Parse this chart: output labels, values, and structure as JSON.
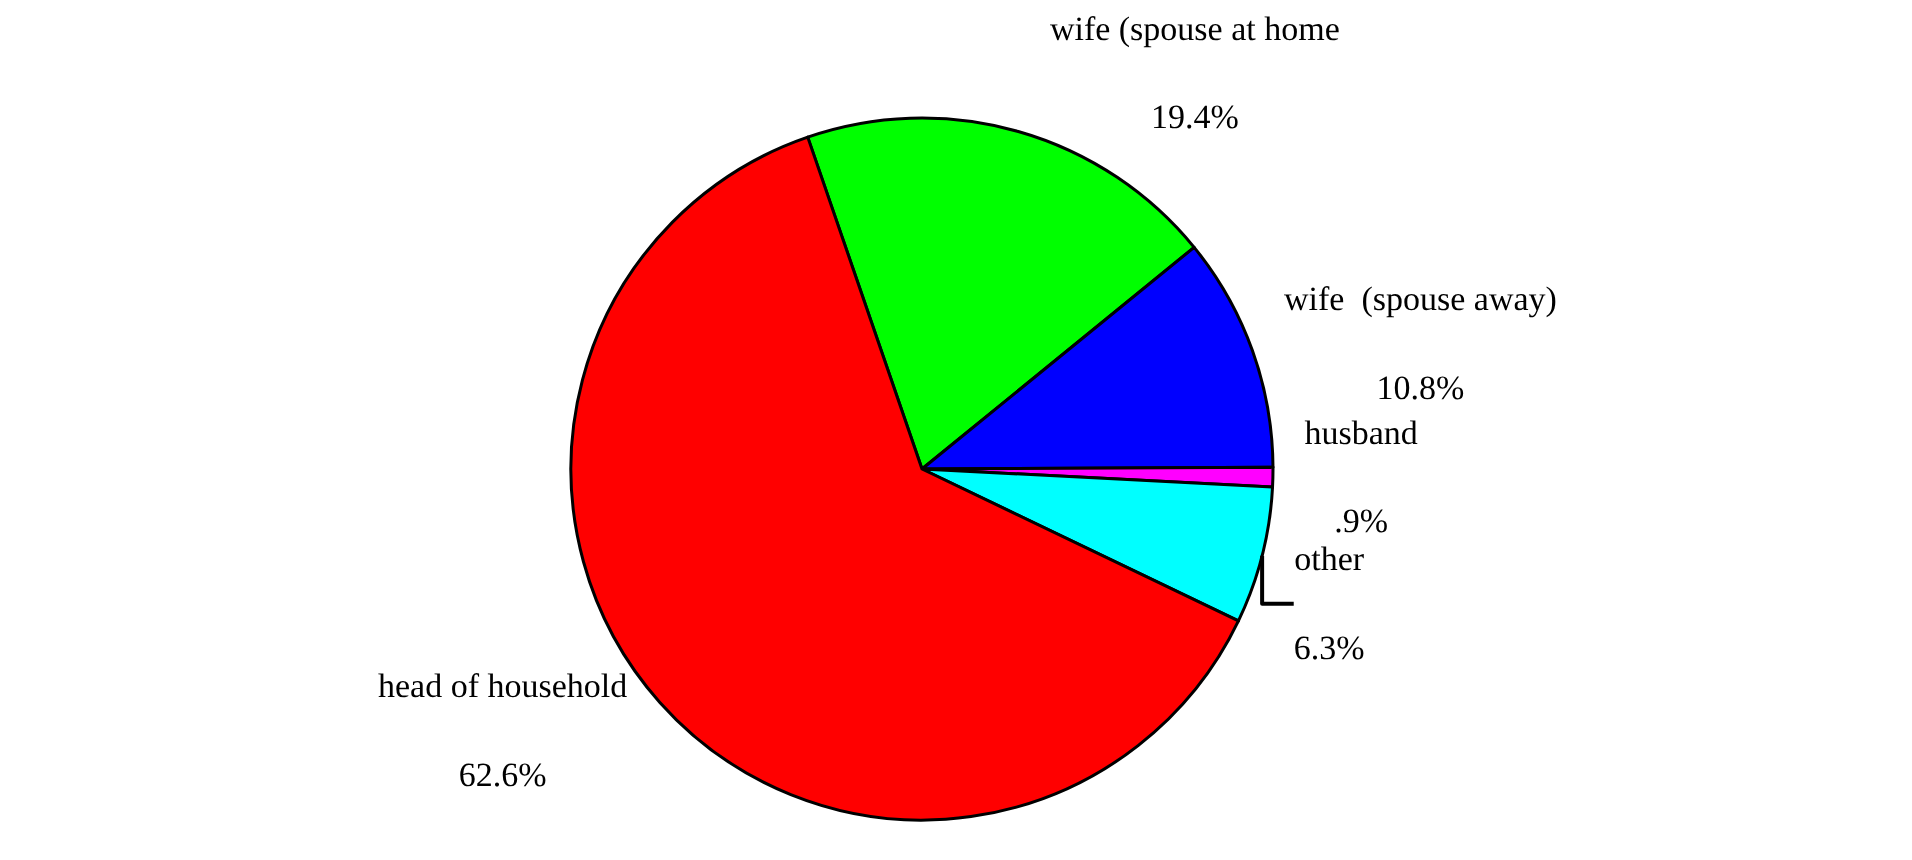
{
  "chart_data": {
    "type": "pie",
    "categories": [
      "wife (spouse at home",
      "wife  (spouse away)",
      "husband",
      "other",
      "head of household"
    ],
    "values": [
      19.4,
      10.8,
      0.9,
      6.3,
      62.6
    ],
    "value_labels": [
      "19.4%",
      "10.8%",
      ".9%",
      "6.3%",
      "62.6%"
    ],
    "colors": [
      "#00ff00",
      "#0000ff",
      "#ff00ff",
      "#00ffff",
      "#ff0000"
    ],
    "legend": false
  }
}
